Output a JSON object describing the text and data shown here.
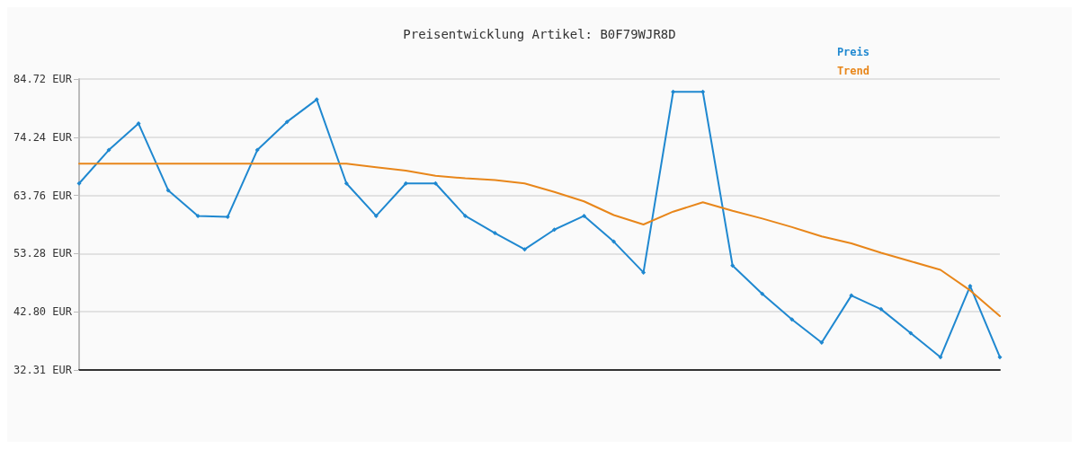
{
  "chart_data": {
    "type": "line",
    "title": "Preisentwicklung Artikel: B0F79WJR8D",
    "categories": [
      null,
      null,
      null,
      null,
      null,
      null,
      null,
      null,
      null,
      null,
      null,
      null,
      null,
      null,
      null,
      null,
      null,
      null,
      null,
      null,
      null,
      null,
      null,
      null,
      null,
      null,
      null,
      null,
      null,
      null,
      null,
      null
    ],
    "series": [
      {
        "name": "Preis",
        "color": "#1f88d0",
        "marker": "diamond",
        "values": [
          65.91,
          71.93,
          76.7,
          64.68,
          60.06,
          59.9,
          71.93,
          77.01,
          81.02,
          65.91,
          60.06,
          65.91,
          65.91,
          60.06,
          56.97,
          54.04,
          57.59,
          60.06,
          55.43,
          49.88,
          82.41,
          82.41,
          51.11,
          46.03,
          41.4,
          37.24,
          45.72,
          43.25,
          38.94,
          34.62,
          47.42,
          34.62
        ]
      },
      {
        "name": "Trend",
        "color": "#e8861a",
        "marker": "none",
        "values": [
          69.46,
          69.46,
          69.46,
          69.46,
          69.46,
          69.46,
          69.46,
          69.46,
          69.46,
          69.46,
          68.84,
          68.23,
          67.3,
          66.84,
          66.53,
          65.91,
          64.37,
          62.68,
          60.21,
          58.51,
          60.83,
          62.52,
          60.98,
          59.59,
          58.05,
          56.36,
          55.12,
          53.43,
          51.88,
          50.34,
          46.64,
          42.02
        ]
      }
    ],
    "ylim": [
      32.31,
      84.72
    ],
    "yticks": [
      {
        "value": 32.31,
        "label": "32.31 EUR"
      },
      {
        "value": 42.8,
        "label": "42.80 EUR"
      },
      {
        "value": 53.28,
        "label": "53.28 EUR"
      },
      {
        "value": 63.76,
        "label": "63.76 EUR"
      },
      {
        "value": 74.24,
        "label": "74.24 EUR"
      },
      {
        "value": 84.72,
        "label": "84.72 EUR"
      }
    ],
    "tick_labels": "y",
    "grid": "y",
    "legend": "top right",
    "line_style": "solid"
  }
}
